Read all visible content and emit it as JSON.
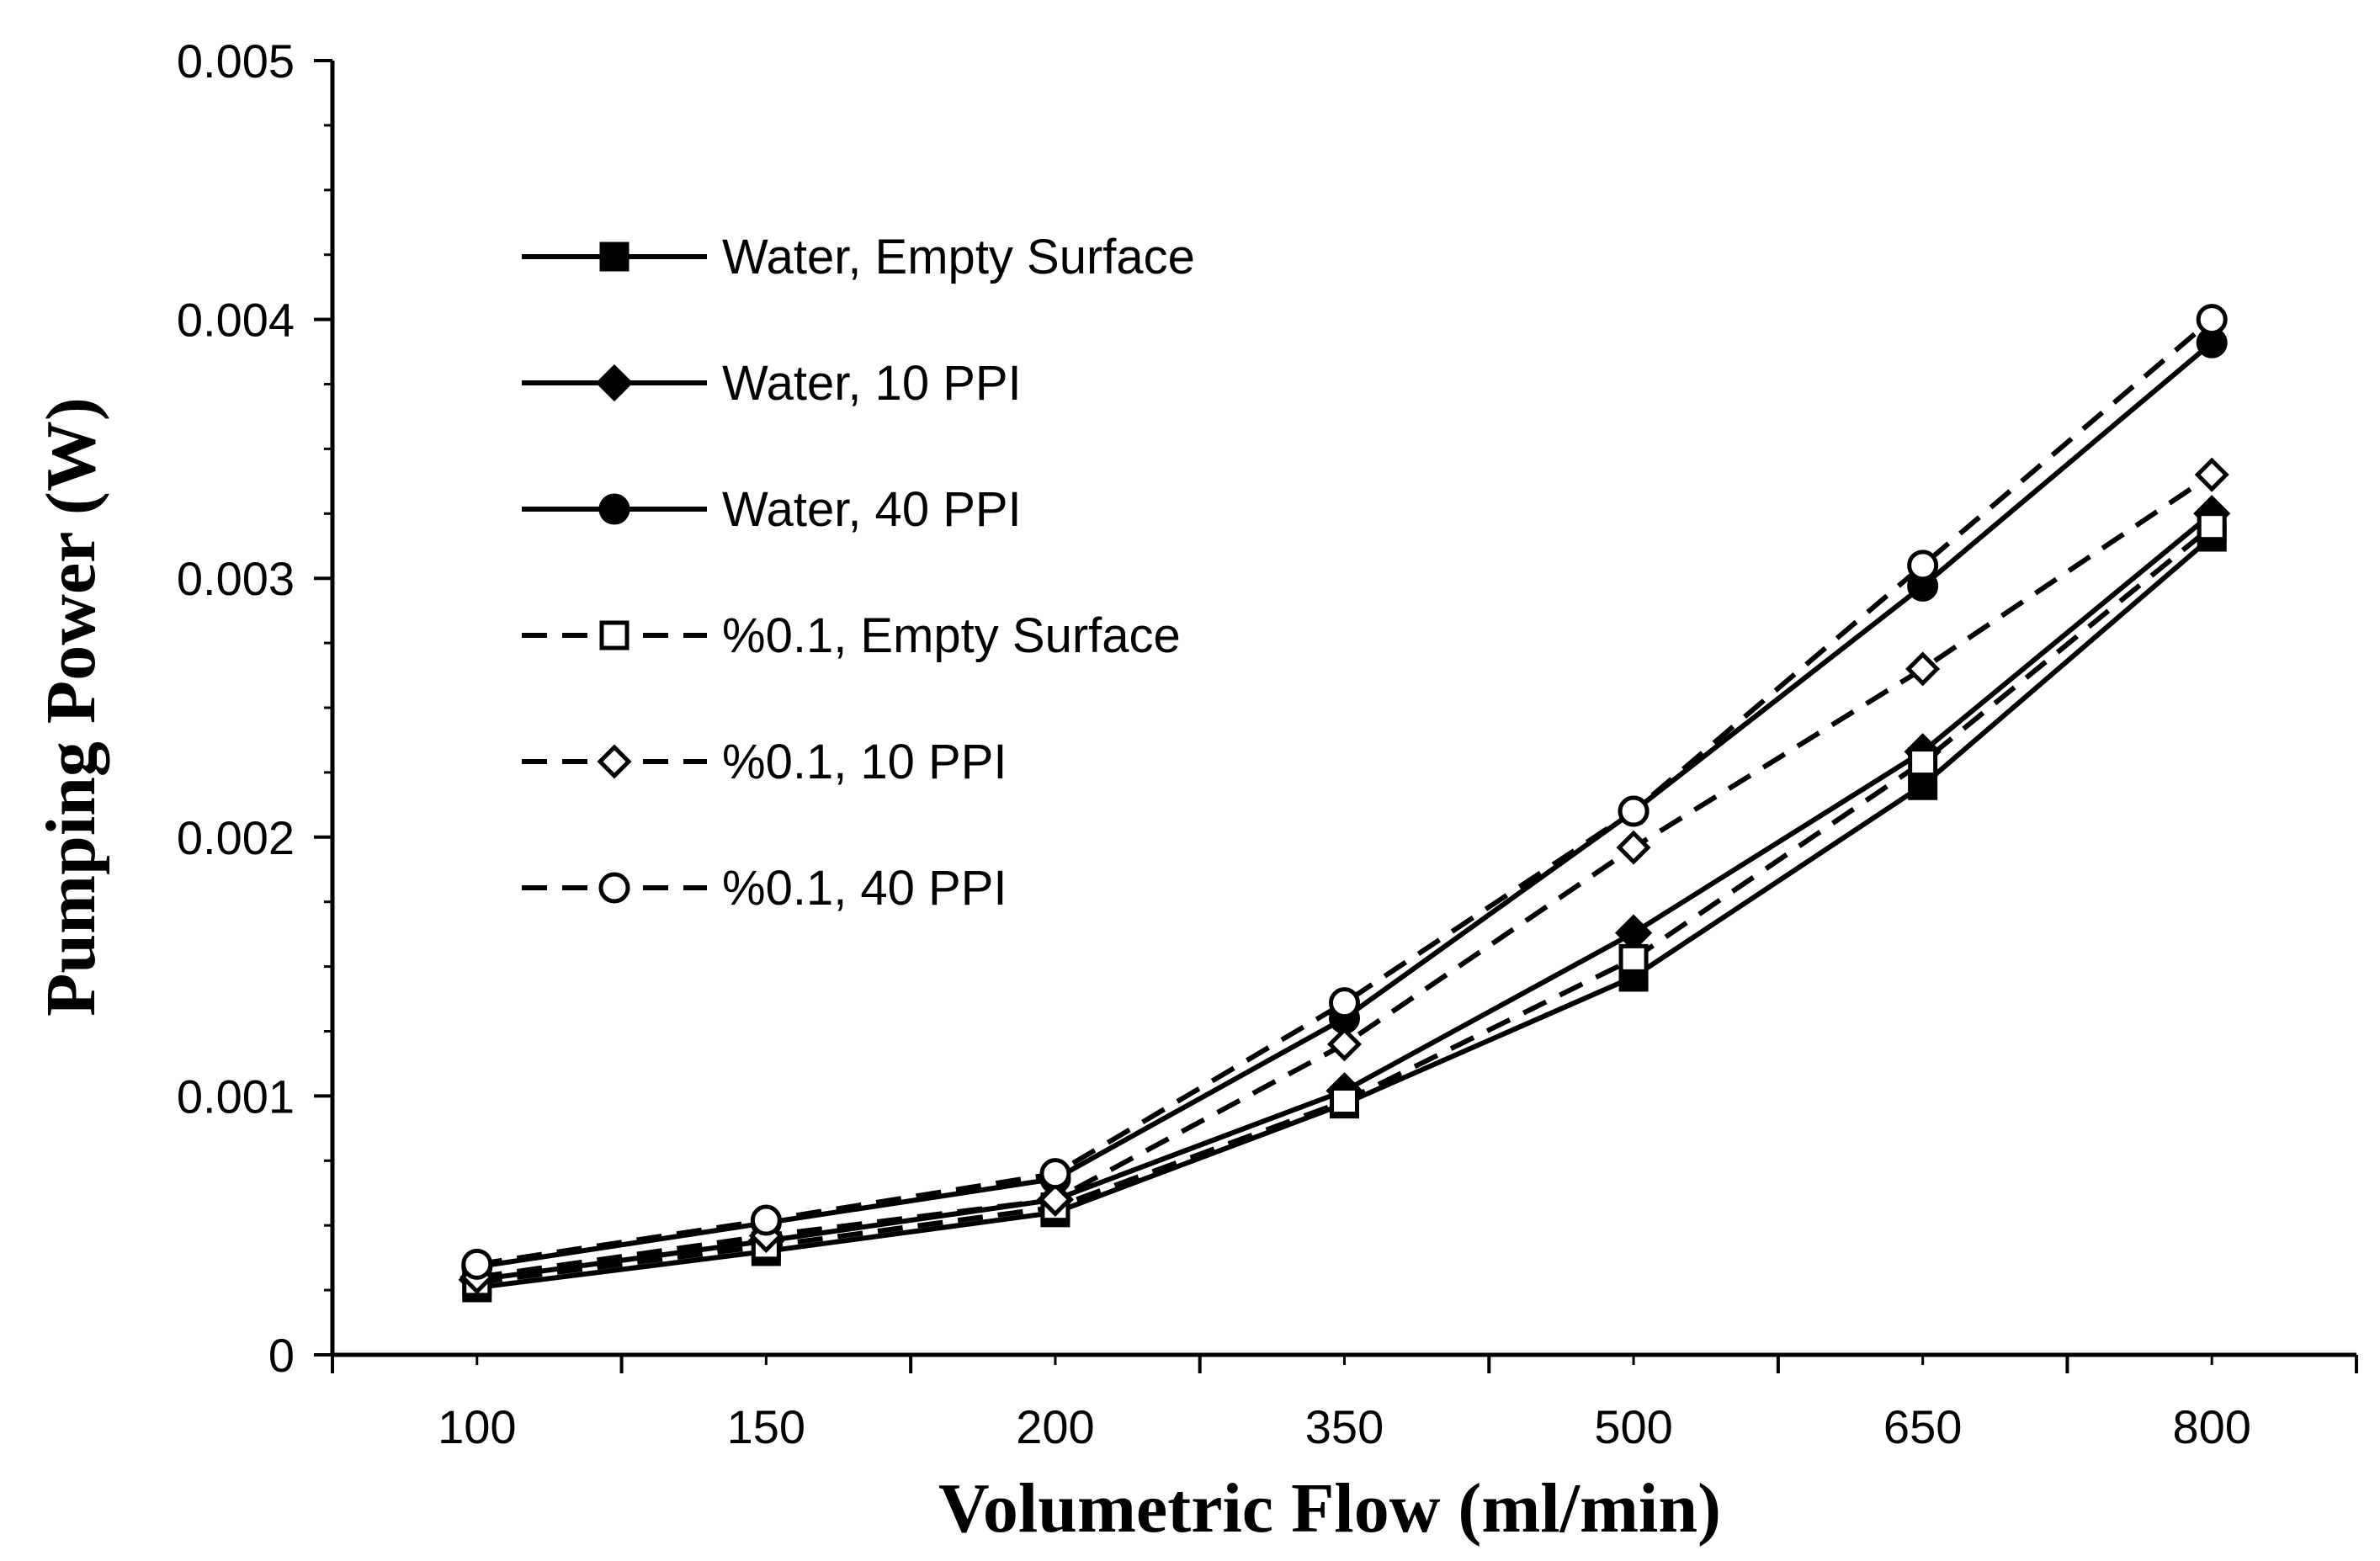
{
  "chart_data": {
    "type": "line",
    "title": "",
    "xlabel": "Volumetric Flow (ml/min)",
    "ylabel": "Pumping Power (W)",
    "categories": [
      "100",
      "150",
      "200",
      "350",
      "500",
      "650",
      "800"
    ],
    "ylim": [
      0,
      0.005
    ],
    "yticks": [
      "0",
      "0.001",
      "0.002",
      "0.003",
      "0.004",
      "0.005"
    ],
    "grid": false,
    "legend_position": "top-left",
    "series": [
      {
        "name": "Water, Empty Surface",
        "values": [
          0.00026,
          0.0004,
          0.00055,
          0.00097,
          0.00146,
          0.0022,
          0.00316
        ],
        "dash": "solid",
        "marker": "square",
        "filled": true
      },
      {
        "name": "Water, 10 PPI",
        "values": [
          0.00029,
          0.00044,
          0.0006,
          0.00102,
          0.00163,
          0.00233,
          0.00325
        ],
        "dash": "solid",
        "marker": "diamond",
        "filled": true
      },
      {
        "name": "Water, 40 PPI",
        "values": [
          0.00034,
          0.00051,
          0.00068,
          0.0013,
          0.0021,
          0.00297,
          0.00391
        ],
        "dash": "solid",
        "marker": "circle",
        "filled": true
      },
      {
        "name": "%0.1, Empty Surface",
        "values": [
          0.00028,
          0.00042,
          0.00057,
          0.00098,
          0.00153,
          0.00229,
          0.0032
        ],
        "dash": "dashed",
        "marker": "square",
        "filled": false
      },
      {
        "name": "%0.1, 10 PPI",
        "values": [
          0.0003,
          0.00046,
          0.0006,
          0.0012,
          0.00196,
          0.00265,
          0.0034
        ],
        "dash": "dashed",
        "marker": "diamond",
        "filled": false
      },
      {
        "name": "%0.1, 40 PPI",
        "values": [
          0.00035,
          0.00052,
          0.0007,
          0.00136,
          0.0021,
          0.00305,
          0.004
        ],
        "dash": "dashed",
        "marker": "circle",
        "filled": false
      }
    ]
  }
}
